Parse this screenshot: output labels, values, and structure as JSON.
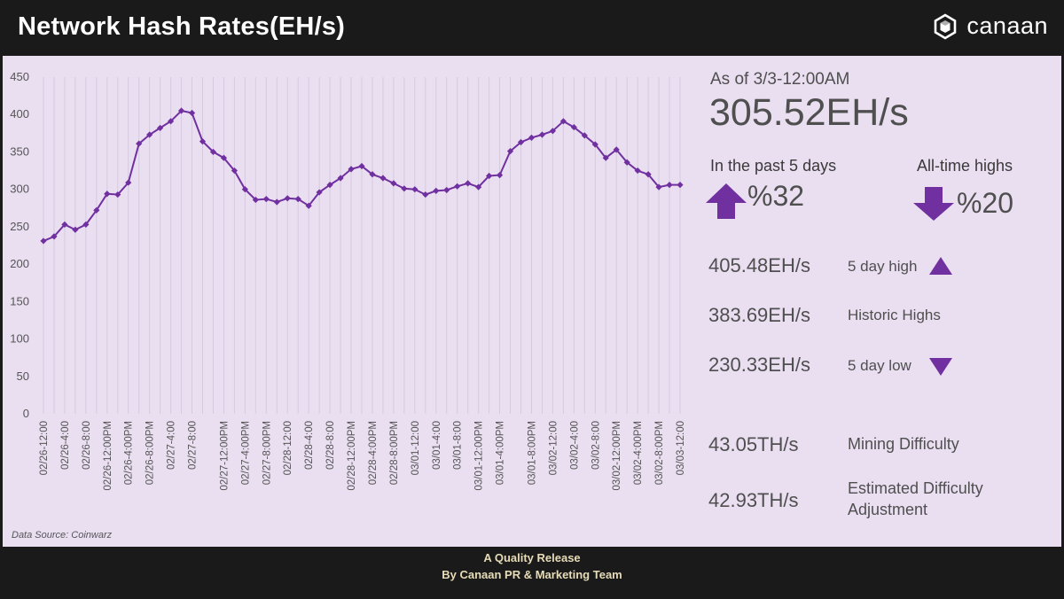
{
  "header": {
    "title": "Network Hash Rates(EH/s)",
    "brand": "canaan",
    "logo_icon": "canaan-hex-logo-icon"
  },
  "summary": {
    "as_of": "As of 3/3-12:00AM",
    "current_value": "305.52EH/s",
    "past_label": "In the past 5 days",
    "past_value": "%32",
    "past_icon": "arrow-up-icon",
    "ath_label": "All-time highs",
    "ath_value": "%20",
    "ath_icon": "arrow-down-icon"
  },
  "stats": [
    {
      "value": "405.48EH/s",
      "label": "5 day high",
      "icon": "triangle-up-icon"
    },
    {
      "value": "383.69EH/s",
      "label": "Historic Highs"
    },
    {
      "value": "230.33EH/s",
      "label": "5 day low",
      "icon": "triangle-down-icon"
    },
    {
      "value": "43.05TH/s",
      "label": "Mining Difficulty"
    },
    {
      "value": "42.93TH/s",
      "label": "Estimated Difficulty Adjustment"
    }
  ],
  "source": "Data Source: Coinwarz",
  "footer": {
    "line1": "A Quality Release",
    "line2": "By Canaan PR & Marketing Team"
  },
  "colors": {
    "accent": "#7030a0",
    "panel": "#eadff1",
    "frame": "#1a1a1a",
    "footer_text": "#e7dcb7"
  },
  "chart_data": {
    "type": "line",
    "title": "",
    "xlabel": "",
    "ylabel": "",
    "ylim": [
      0,
      450
    ],
    "yticks": [
      0,
      50,
      100,
      150,
      200,
      250,
      300,
      350,
      400,
      450
    ],
    "grid": "vertical",
    "tick_labels": [
      "02/26-12:00",
      "02/26-4:00",
      "02/26-8:00",
      "02/26-12:00PM",
      "02/26-4:00PM",
      "02/26-8:00PM",
      "02/27-4:00",
      "02/27-8:00",
      "02/27-12:00PM",
      "02/27-4:00PM",
      "02/27-8:00PM",
      "02/28-12:00",
      "02/28-4:00",
      "02/28-8:00",
      "02/28-12:00PM",
      "02/28-4:00PM",
      "02/28-8:00PM",
      "03/01-12:00",
      "03/01-4:00",
      "03/01-8:00",
      "03/01-12:00PM",
      "03/01-4:00PM",
      "03/01-8:00PM",
      "03/02-12:00",
      "03/02-4:00",
      "03/02-8:00",
      "03/02-12:00PM",
      "03/02-4:00PM",
      "03/02-8:00PM",
      "03/03-12:00"
    ],
    "series": [
      {
        "values": [
          231,
          237,
          253,
          246,
          253,
          272,
          294,
          293,
          309,
          361,
          373,
          382,
          391,
          405,
          402,
          364,
          350,
          342,
          325,
          300,
          286,
          287,
          283,
          288,
          287,
          278,
          296,
          306,
          315,
          327,
          331,
          320,
          315,
          308,
          301,
          300,
          293,
          298,
          299,
          304,
          308,
          303,
          318,
          319,
          351,
          363,
          369,
          373,
          378,
          391,
          383,
          372,
          360,
          342,
          353,
          336,
          325,
          320,
          303,
          306,
          306
        ]
      }
    ]
  }
}
